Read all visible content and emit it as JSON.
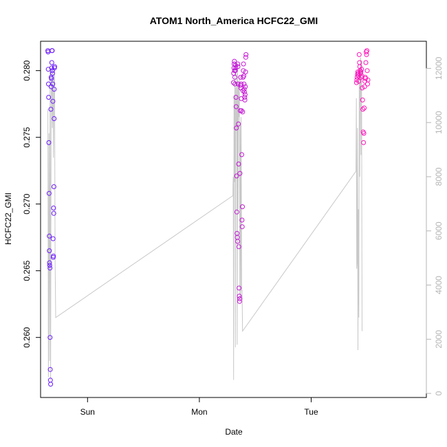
{
  "chart_data": {
    "type": "scatter",
    "title": "ATOM1 North_America HCFC22_GMI",
    "xlabel": "Date",
    "ylabel": "HCFC22_GMI",
    "x_ticks": [
      {
        "label": "Sun",
        "value": 0.25
      },
      {
        "label": "Mon",
        "value": 1.25
      },
      {
        "label": "Tue",
        "value": 2.25
      }
    ],
    "xlim": [
      -0.17,
      3.28
    ],
    "ylim": [
      0.2555,
      0.2822
    ],
    "y_ticks": [
      0.26,
      0.265,
      0.27,
      0.275,
      0.28
    ],
    "y_right_lim": [
      -150,
      13000
    ],
    "y_right_ticks": [
      0,
      2000,
      4000,
      6000,
      8000,
      10000,
      12000
    ],
    "grid": false,
    "colors": {
      "line": "#c8c8c8",
      "right_axis": "#b5b5b5",
      "point_start": "#6a1bff",
      "point_end": "#ff16b8"
    },
    "series": [
      {
        "kind": "points",
        "points": [
          [
            -0.105,
            0.2815
          ],
          [
            -0.103,
            0.2814
          ],
          [
            -0.101,
            0.2801
          ],
          [
            -0.099,
            0.279
          ],
          [
            -0.098,
            0.278
          ],
          [
            -0.096,
            0.2746
          ],
          [
            -0.094,
            0.2708
          ],
          [
            -0.092,
            0.2676
          ],
          [
            -0.091,
            0.2665
          ],
          [
            -0.09,
            0.2656
          ],
          [
            -0.088,
            0.2654
          ],
          [
            -0.086,
            0.2652
          ],
          [
            -0.085,
            0.26
          ],
          [
            -0.083,
            0.2576
          ],
          [
            -0.082,
            0.2568
          ],
          [
            -0.08,
            0.2565
          ],
          [
            -0.078,
            0.2771
          ],
          [
            -0.076,
            0.2788
          ],
          [
            -0.075,
            0.2795
          ],
          [
            -0.073,
            0.2794
          ],
          [
            -0.071,
            0.2802
          ],
          [
            -0.07,
            0.2806
          ],
          [
            -0.068,
            0.2815
          ],
          [
            -0.066,
            0.2815
          ],
          [
            -0.064,
            0.28
          ],
          [
            -0.063,
            0.2798
          ],
          [
            -0.061,
            0.279
          ],
          [
            -0.06,
            0.2777
          ],
          [
            -0.058,
            0.2674
          ],
          [
            -0.057,
            0.266
          ],
          [
            -0.055,
            0.2661
          ],
          [
            -0.054,
            0.2697
          ],
          [
            -0.052,
            0.2693
          ],
          [
            -0.051,
            0.2713
          ],
          [
            -0.049,
            0.2764
          ],
          [
            -0.048,
            0.2786
          ],
          [
            -0.046,
            0.2802
          ],
          [
            -0.044,
            0.2803
          ],
          [
            1.555,
            0.2791
          ],
          [
            1.557,
            0.2798
          ],
          [
            1.559,
            0.2802
          ],
          [
            1.561,
            0.2805
          ],
          [
            1.563,
            0.2807
          ],
          [
            1.565,
            0.28
          ],
          [
            1.567,
            0.2795
          ],
          [
            1.569,
            0.279
          ],
          [
            1.571,
            0.28
          ],
          [
            1.573,
            0.2804
          ],
          [
            1.575,
            0.2802
          ],
          [
            1.577,
            0.278
          ],
          [
            1.579,
            0.2773
          ],
          [
            1.581,
            0.2757
          ],
          [
            1.583,
            0.2721
          ],
          [
            1.585,
            0.2694
          ],
          [
            1.587,
            0.2678
          ],
          [
            1.589,
            0.2675
          ],
          [
            1.591,
            0.2672
          ],
          [
            1.593,
            0.2805
          ],
          [
            1.595,
            0.2803
          ],
          [
            1.597,
            0.279
          ],
          [
            1.599,
            0.276
          ],
          [
            1.601,
            0.273
          ],
          [
            1.603,
            0.2668
          ],
          [
            1.605,
            0.2637
          ],
          [
            1.607,
            0.2631
          ],
          [
            1.609,
            0.2627
          ],
          [
            1.611,
            0.2629
          ],
          [
            1.613,
            0.2723
          ],
          [
            1.615,
            0.277
          ],
          [
            1.617,
            0.2789
          ],
          [
            1.619,
            0.2795
          ],
          [
            1.621,
            0.2787
          ],
          [
            1.623,
            0.279
          ],
          [
            1.625,
            0.2779
          ],
          [
            1.627,
            0.277
          ],
          [
            1.629,
            0.2737
          ],
          [
            1.631,
            0.2688
          ],
          [
            1.633,
            0.2683
          ],
          [
            1.635,
            0.2698
          ],
          [
            1.637,
            0.2769
          ],
          [
            1.639,
            0.2785
          ],
          [
            1.641,
            0.2795
          ],
          [
            1.643,
            0.28
          ],
          [
            1.645,
            0.2805
          ],
          [
            1.647,
            0.2796
          ],
          [
            1.649,
            0.279
          ],
          [
            1.651,
            0.2786
          ],
          [
            1.653,
            0.2784
          ],
          [
            1.655,
            0.278
          ],
          [
            1.657,
            0.2778
          ],
          [
            1.659,
            0.2782
          ],
          [
            1.661,
            0.2788
          ],
          [
            1.663,
            0.2799
          ],
          [
            1.665,
            0.281
          ],
          [
            1.667,
            0.2812
          ],
          [
            2.655,
            0.2791
          ],
          [
            2.658,
            0.2793
          ],
          [
            2.661,
            0.2795
          ],
          [
            2.664,
            0.2797
          ],
          [
            2.667,
            0.2799
          ],
          [
            2.67,
            0.2798
          ],
          [
            2.673,
            0.2796
          ],
          [
            2.676,
            0.2792
          ],
          [
            2.679,
            0.2812
          ],
          [
            2.682,
            0.2806
          ],
          [
            2.685,
            0.2803
          ],
          [
            2.688,
            0.28
          ],
          [
            2.691,
            0.2798
          ],
          [
            2.694,
            0.2799
          ],
          [
            2.697,
            0.2795
          ],
          [
            2.7,
            0.2801
          ],
          [
            2.703,
            0.2796
          ],
          [
            2.706,
            0.2787
          ],
          [
            2.709,
            0.2778
          ],
          [
            2.712,
            0.2771
          ],
          [
            2.715,
            0.2754
          ],
          [
            2.718,
            0.2746
          ],
          [
            2.721,
            0.2753
          ],
          [
            2.724,
            0.2772
          ],
          [
            2.727,
            0.2788
          ],
          [
            2.73,
            0.2792
          ],
          [
            2.733,
            0.2795
          ],
          [
            2.736,
            0.2794
          ],
          [
            2.739,
            0.2806
          ],
          [
            2.742,
            0.2814
          ],
          [
            2.745,
            0.2812
          ],
          [
            2.748,
            0.2815
          ],
          [
            2.751,
            0.28
          ],
          [
            2.754,
            0.279
          ],
          [
            2.757,
            0.2793
          ]
        ]
      },
      {
        "kind": "line",
        "axis": "right",
        "points": [
          [
            -0.105,
            10500
          ],
          [
            -0.1,
            600
          ],
          [
            -0.095,
            9600
          ],
          [
            -0.09,
            1200
          ],
          [
            -0.085,
            11900
          ],
          [
            -0.08,
            500
          ],
          [
            -0.075,
            10800
          ],
          [
            -0.07,
            12100
          ],
          [
            -0.065,
            9800
          ],
          [
            -0.06,
            11900
          ],
          [
            -0.055,
            8700
          ],
          [
            -0.05,
            11500
          ],
          [
            -0.045,
            12000
          ],
          [
            -0.04,
            5000
          ],
          [
            -0.035,
            2800
          ],
          [
            1.55,
            7300
          ],
          [
            1.551,
            7700
          ],
          [
            1.553,
            8000
          ],
          [
            1.556,
            500
          ],
          [
            1.56,
            11000
          ],
          [
            1.564,
            7800
          ],
          [
            1.568,
            12200
          ],
          [
            1.572,
            1700
          ],
          [
            1.576,
            11300
          ],
          [
            1.58,
            9700
          ],
          [
            1.584,
            11800
          ],
          [
            1.588,
            1800
          ],
          [
            1.592,
            12000
          ],
          [
            1.596,
            6800
          ],
          [
            1.6,
            11500
          ],
          [
            1.604,
            10200
          ],
          [
            1.608,
            11700
          ],
          [
            1.612,
            3500
          ],
          [
            1.616,
            9900
          ],
          [
            1.62,
            3500
          ],
          [
            1.624,
            10200
          ],
          [
            1.628,
            3800
          ],
          [
            1.632,
            3800
          ],
          [
            1.636,
            2300
          ],
          [
            2.65,
            8200
          ],
          [
            2.654,
            10900
          ],
          [
            2.657,
            4600
          ],
          [
            2.66,
            4800
          ],
          [
            2.664,
            9800
          ],
          [
            2.668,
            1600
          ],
          [
            2.672,
            6800
          ],
          [
            2.676,
            2800
          ],
          [
            2.68,
            11500
          ],
          [
            2.684,
            8000
          ],
          [
            2.688,
            12100
          ],
          [
            2.692,
            12400
          ],
          [
            2.696,
            8800
          ],
          [
            2.7,
            12300
          ],
          [
            2.705,
            2300
          ]
        ]
      }
    ]
  }
}
